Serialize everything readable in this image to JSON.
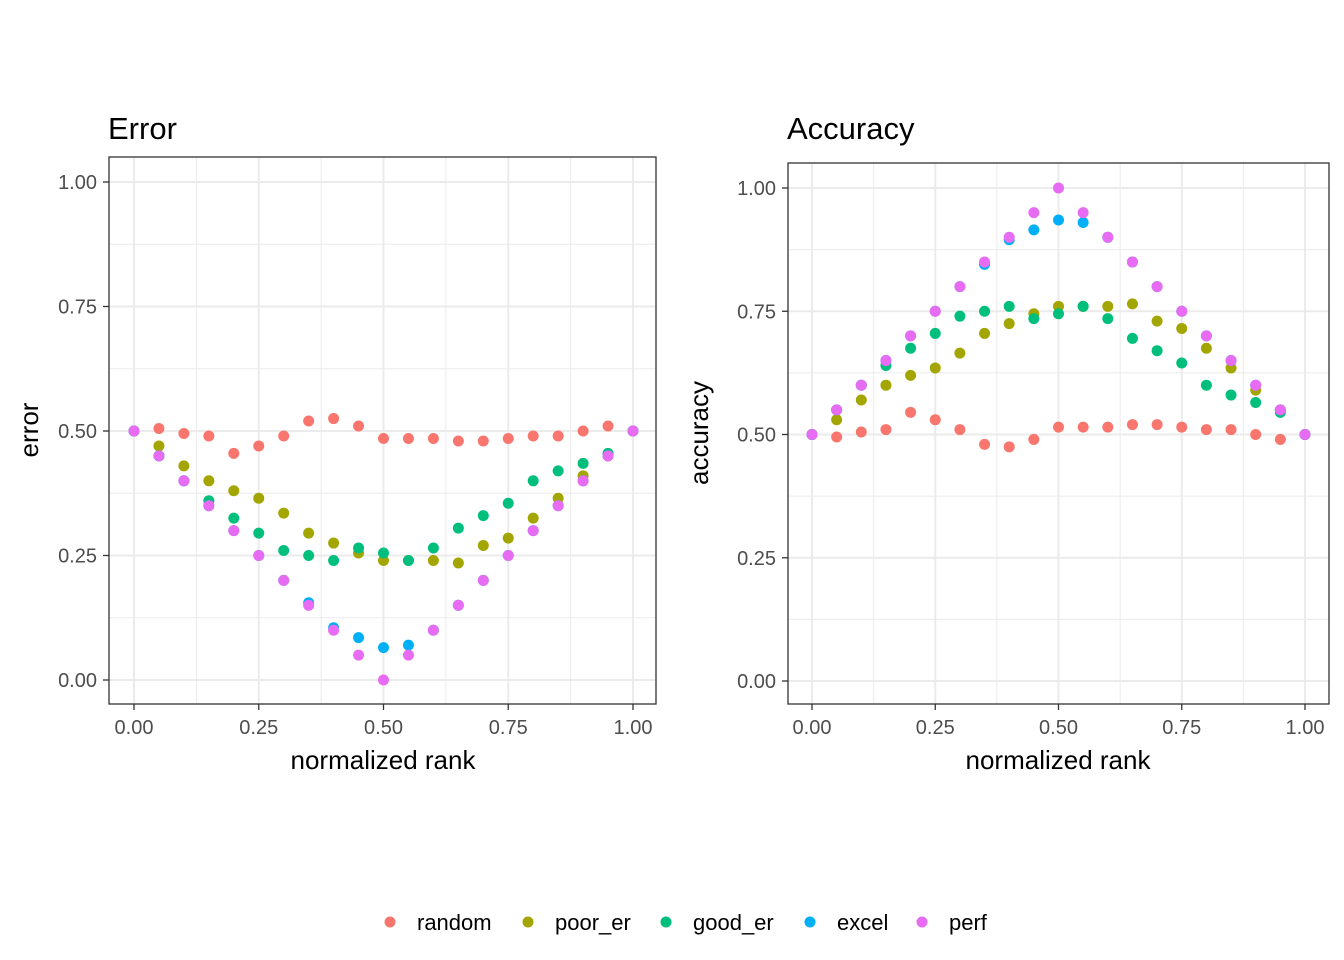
{
  "colors": {
    "random": "#F8766D",
    "poor_er": "#A3A500",
    "good_er": "#00BF7D",
    "excel": "#00B0F6",
    "perf": "#E76BF3"
  },
  "legend": {
    "items": [
      "random",
      "poor_er",
      "good_er",
      "excel",
      "perf"
    ]
  },
  "chart_data": [
    {
      "type": "scatter",
      "title": "Error",
      "xlabel": "normalized rank",
      "ylabel": "error",
      "xlim": [
        0,
        1
      ],
      "ylim": [
        0,
        1
      ],
      "x_ticks": [
        "0.00",
        "0.25",
        "0.50",
        "0.75",
        "1.00"
      ],
      "y_ticks": [
        "0.00",
        "0.25",
        "0.50",
        "0.75",
        "1.00"
      ],
      "grid": true,
      "x": [
        0.0,
        0.05,
        0.1,
        0.15,
        0.2,
        0.25,
        0.3,
        0.35,
        0.4,
        0.45,
        0.5,
        0.55,
        0.6,
        0.65,
        0.7,
        0.75,
        0.8,
        0.85,
        0.9,
        0.95,
        1.0
      ],
      "series": [
        {
          "name": "random",
          "values": [
            0.5,
            0.505,
            0.495,
            0.49,
            0.455,
            0.47,
            0.49,
            0.52,
            0.525,
            0.51,
            0.485,
            0.485,
            0.485,
            0.48,
            0.48,
            0.485,
            0.49,
            0.49,
            0.5,
            0.51,
            0.5
          ]
        },
        {
          "name": "poor_er",
          "values": [
            0.5,
            0.47,
            0.43,
            0.4,
            0.38,
            0.365,
            0.335,
            0.295,
            0.275,
            0.255,
            0.24,
            0.24,
            0.24,
            0.235,
            0.27,
            0.285,
            0.325,
            0.365,
            0.41,
            0.45,
            0.5
          ]
        },
        {
          "name": "good_er",
          "values": [
            0.5,
            0.45,
            0.4,
            0.36,
            0.325,
            0.295,
            0.26,
            0.25,
            0.24,
            0.265,
            0.255,
            0.24,
            0.265,
            0.305,
            0.33,
            0.355,
            0.4,
            0.42,
            0.435,
            0.455,
            0.5
          ]
        },
        {
          "name": "excel",
          "values": [
            0.5,
            0.45,
            0.4,
            0.35,
            0.3,
            0.25,
            0.2,
            0.155,
            0.105,
            0.085,
            0.065,
            0.07,
            0.1,
            0.15,
            0.2,
            0.25,
            0.3,
            0.35,
            0.4,
            0.45,
            0.5
          ]
        },
        {
          "name": "perf",
          "values": [
            0.5,
            0.45,
            0.4,
            0.35,
            0.3,
            0.25,
            0.2,
            0.15,
            0.1,
            0.05,
            0.0,
            0.05,
            0.1,
            0.15,
            0.2,
            0.25,
            0.3,
            0.35,
            0.4,
            0.45,
            0.5
          ]
        }
      ]
    },
    {
      "type": "scatter",
      "title": "Accuracy",
      "xlabel": "normalized rank",
      "ylabel": "accuracy",
      "xlim": [
        0,
        1
      ],
      "ylim": [
        0,
        1
      ],
      "x_ticks": [
        "0.00",
        "0.25",
        "0.50",
        "0.75",
        "1.00"
      ],
      "y_ticks": [
        "0.00",
        "0.25",
        "0.50",
        "0.75",
        "1.00"
      ],
      "grid": true,
      "x": [
        0.0,
        0.05,
        0.1,
        0.15,
        0.2,
        0.25,
        0.3,
        0.35,
        0.4,
        0.45,
        0.5,
        0.55,
        0.6,
        0.65,
        0.7,
        0.75,
        0.8,
        0.85,
        0.9,
        0.95,
        1.0
      ],
      "series": [
        {
          "name": "random",
          "values": [
            0.5,
            0.495,
            0.505,
            0.51,
            0.545,
            0.53,
            0.51,
            0.48,
            0.475,
            0.49,
            0.515,
            0.515,
            0.515,
            0.52,
            0.52,
            0.515,
            0.51,
            0.51,
            0.5,
            0.49,
            0.5
          ]
        },
        {
          "name": "poor_er",
          "values": [
            0.5,
            0.53,
            0.57,
            0.6,
            0.62,
            0.635,
            0.665,
            0.705,
            0.725,
            0.745,
            0.76,
            0.76,
            0.76,
            0.765,
            0.73,
            0.715,
            0.675,
            0.635,
            0.59,
            0.55,
            0.5
          ]
        },
        {
          "name": "good_er",
          "values": [
            0.5,
            0.55,
            0.6,
            0.64,
            0.675,
            0.705,
            0.74,
            0.75,
            0.76,
            0.735,
            0.745,
            0.76,
            0.735,
            0.695,
            0.67,
            0.645,
            0.6,
            0.58,
            0.565,
            0.545,
            0.5
          ]
        },
        {
          "name": "excel",
          "values": [
            0.5,
            0.55,
            0.6,
            0.65,
            0.7,
            0.75,
            0.8,
            0.845,
            0.895,
            0.915,
            0.935,
            0.93,
            0.9,
            0.85,
            0.8,
            0.75,
            0.7,
            0.65,
            0.6,
            0.55,
            0.5
          ]
        },
        {
          "name": "perf",
          "values": [
            0.5,
            0.55,
            0.6,
            0.65,
            0.7,
            0.75,
            0.8,
            0.85,
            0.9,
            0.95,
            1.0,
            0.95,
            0.9,
            0.85,
            0.8,
            0.75,
            0.7,
            0.65,
            0.6,
            0.55,
            0.5
          ]
        }
      ]
    }
  ]
}
